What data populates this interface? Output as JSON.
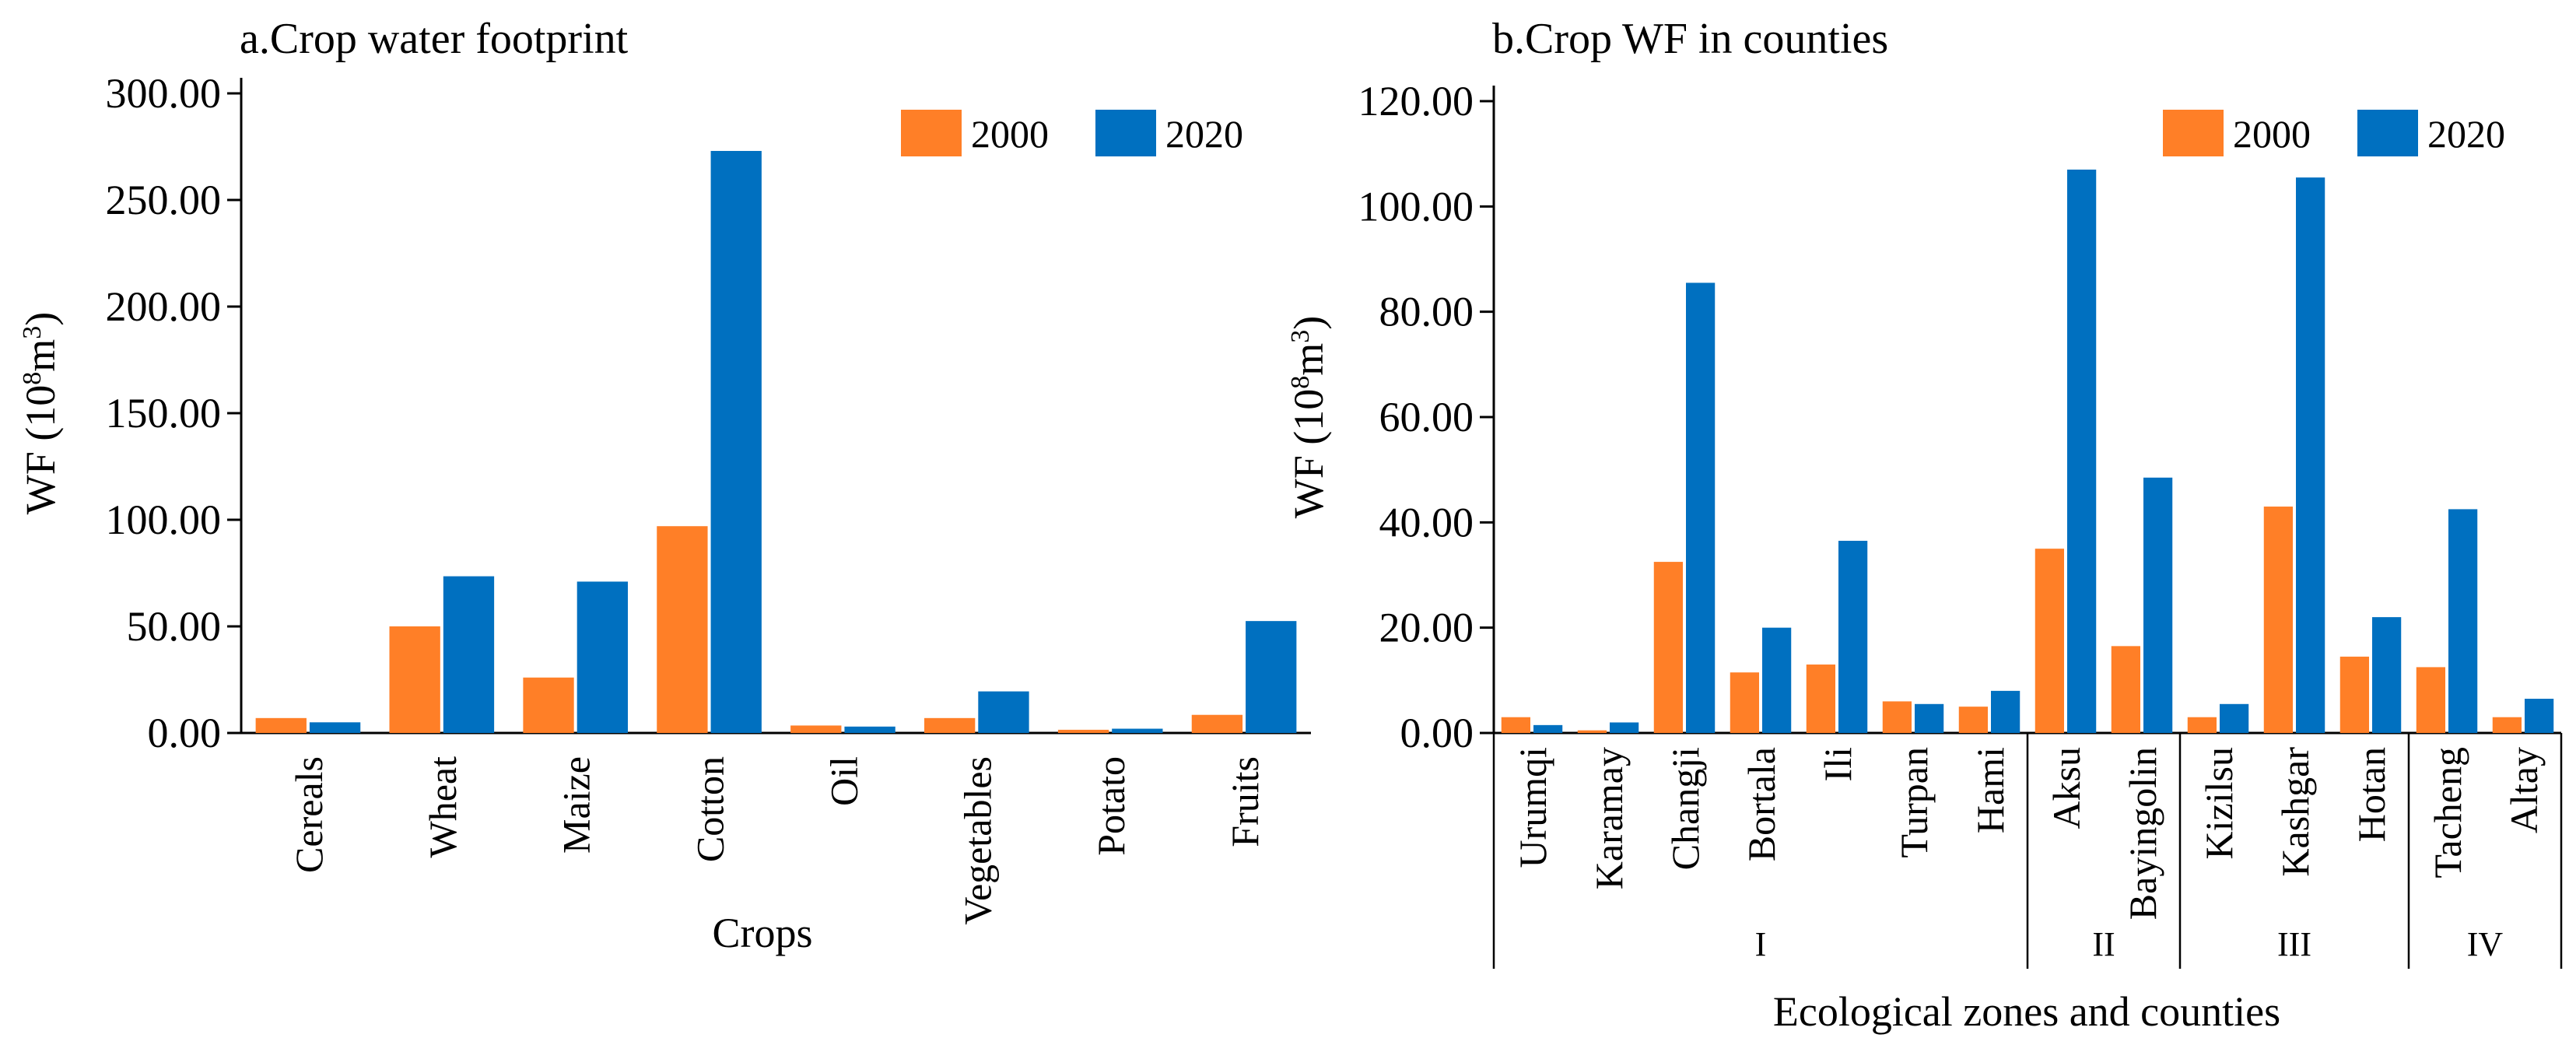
{
  "colors": {
    "y2000": "#FF7F27",
    "y2020": "#0070C0",
    "axis": "#000000"
  },
  "chart_data": [
    {
      "type": "bar",
      "title": "a.Crop water footprint",
      "xlabel": "Crops",
      "ylabel": {
        "main": "WF (10",
        "exp1": "8",
        "mid": "m",
        "exp2": "3",
        "end": ")"
      },
      "ylim": [
        0,
        300
      ],
      "yticks": [
        0,
        50,
        100,
        150,
        200,
        250,
        300
      ],
      "ytick_labels": [
        "0.00",
        "50.00",
        "100.00",
        "150.00",
        "200.00",
        "250.00",
        "300.00"
      ],
      "legend_position": "top-right",
      "categories": [
        "Cereals",
        "Wheat",
        "Maize",
        "Cotton",
        "Oil",
        "Vegetables",
        "Potato",
        "Fruits"
      ],
      "series": [
        {
          "name": "2000",
          "values": [
            7,
            50,
            26,
            97,
            3.5,
            7,
            1.5,
            8.5
          ]
        },
        {
          "name": "2020",
          "values": [
            5,
            73.5,
            71,
            273,
            3,
            19.5,
            2,
            52.5
          ]
        }
      ]
    },
    {
      "type": "bar",
      "title": "b.Crop WF in counties",
      "xlabel": "Ecological zones and counties",
      "ylabel": {
        "main": "WF (10",
        "exp1": "8",
        "mid": "m",
        "exp2": "3",
        "end": ")"
      },
      "ylim": [
        0,
        120
      ],
      "yticks": [
        0,
        20,
        40,
        60,
        80,
        100,
        120
      ],
      "ytick_labels": [
        "0.00",
        "20.00",
        "40.00",
        "60.00",
        "80.00",
        "100.00",
        "120.00"
      ],
      "legend_position": "top-right",
      "categories": [
        "Urumqi",
        "Karamay",
        "Changji",
        "Bortala",
        "Ili",
        "Turpan",
        "Hami",
        "Aksu",
        "Bayingolin",
        "Kizilsu",
        "Kashgar",
        "Hotan",
        "Tacheng",
        "Altay"
      ],
      "zones": [
        {
          "label": "I",
          "count": 7
        },
        {
          "label": "II",
          "count": 2
        },
        {
          "label": "III",
          "count": 3
        },
        {
          "label": "IV",
          "count": 2
        }
      ],
      "series": [
        {
          "name": "2000",
          "values": [
            3,
            0.5,
            32.5,
            11.5,
            13,
            6,
            5,
            35,
            16.5,
            3,
            43,
            14.5,
            12.5,
            3
          ]
        },
        {
          "name": "2020",
          "values": [
            1.5,
            2,
            85.5,
            20,
            36.5,
            5.5,
            8,
            107,
            48.5,
            5.5,
            105.5,
            22,
            42.5,
            6.5
          ]
        }
      ]
    }
  ]
}
